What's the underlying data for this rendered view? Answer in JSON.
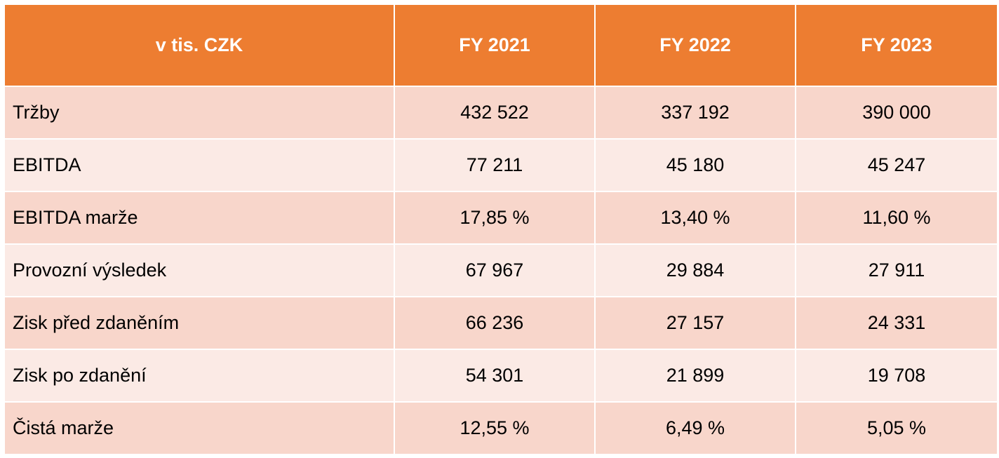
{
  "table": {
    "header": {
      "unit": "v tis. CZK",
      "years": [
        "FY 2021",
        "FY 2022",
        "FY 2023"
      ]
    },
    "rows": [
      {
        "label": "Tržby",
        "values": [
          "432 522",
          "337 192",
          "390 000"
        ]
      },
      {
        "label": "EBITDA",
        "values": [
          "77 211",
          "45 180",
          "45 247"
        ]
      },
      {
        "label": "EBITDA marže",
        "values": [
          "17,85 %",
          "13,40 %",
          "11,60 %"
        ]
      },
      {
        "label": "Provozní výsledek",
        "values": [
          "67 967",
          "29 884",
          "27 911"
        ]
      },
      {
        "label": "Zisk před zdaněním",
        "values": [
          "66 236",
          "27 157",
          "24 331"
        ]
      },
      {
        "label": "Zisk po zdanění",
        "values": [
          "54 301",
          "21 899",
          "19 708"
        ]
      },
      {
        "label": "Čistá marže",
        "values": [
          "12,55 %",
          "6,49 %",
          "5,05 %"
        ]
      }
    ]
  },
  "colors": {
    "header_bg": "#ed7d31",
    "header_text": "#ffffff",
    "row_odd_bg": "#f8d6cb",
    "row_even_bg": "#fbeae5"
  }
}
